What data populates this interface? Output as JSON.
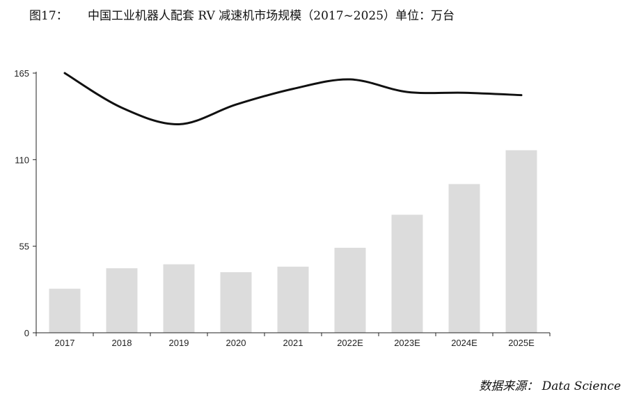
{
  "title": {
    "figure_label": "图17：",
    "text": "中国工业机器人配套 RV 减速机市场规模（2017~2025）单位：万台"
  },
  "source": "数据来源： Data Science",
  "colors": {
    "bar": "#dcdcdc",
    "line": "#111111",
    "axis": "#222222"
  },
  "chart_data": {
    "type": "bar",
    "categories": [
      "2017",
      "2018",
      "2019",
      "2020",
      "2021",
      "2022E",
      "2023E",
      "2024E",
      "2025E"
    ],
    "series": [
      {
        "type": "bar",
        "values": [
          28,
          41,
          43.5,
          38.5,
          42,
          54,
          75,
          94.5,
          116
        ]
      },
      {
        "type": "line",
        "values": [
          165,
          143,
          132.5,
          145,
          155,
          161,
          153,
          152.5,
          151
        ]
      }
    ],
    "ylim": [
      0,
      165
    ],
    "yticks": [
      0,
      55,
      110,
      165
    ],
    "xlabel": "",
    "ylabel": "",
    "grid": false,
    "legend": "none"
  }
}
